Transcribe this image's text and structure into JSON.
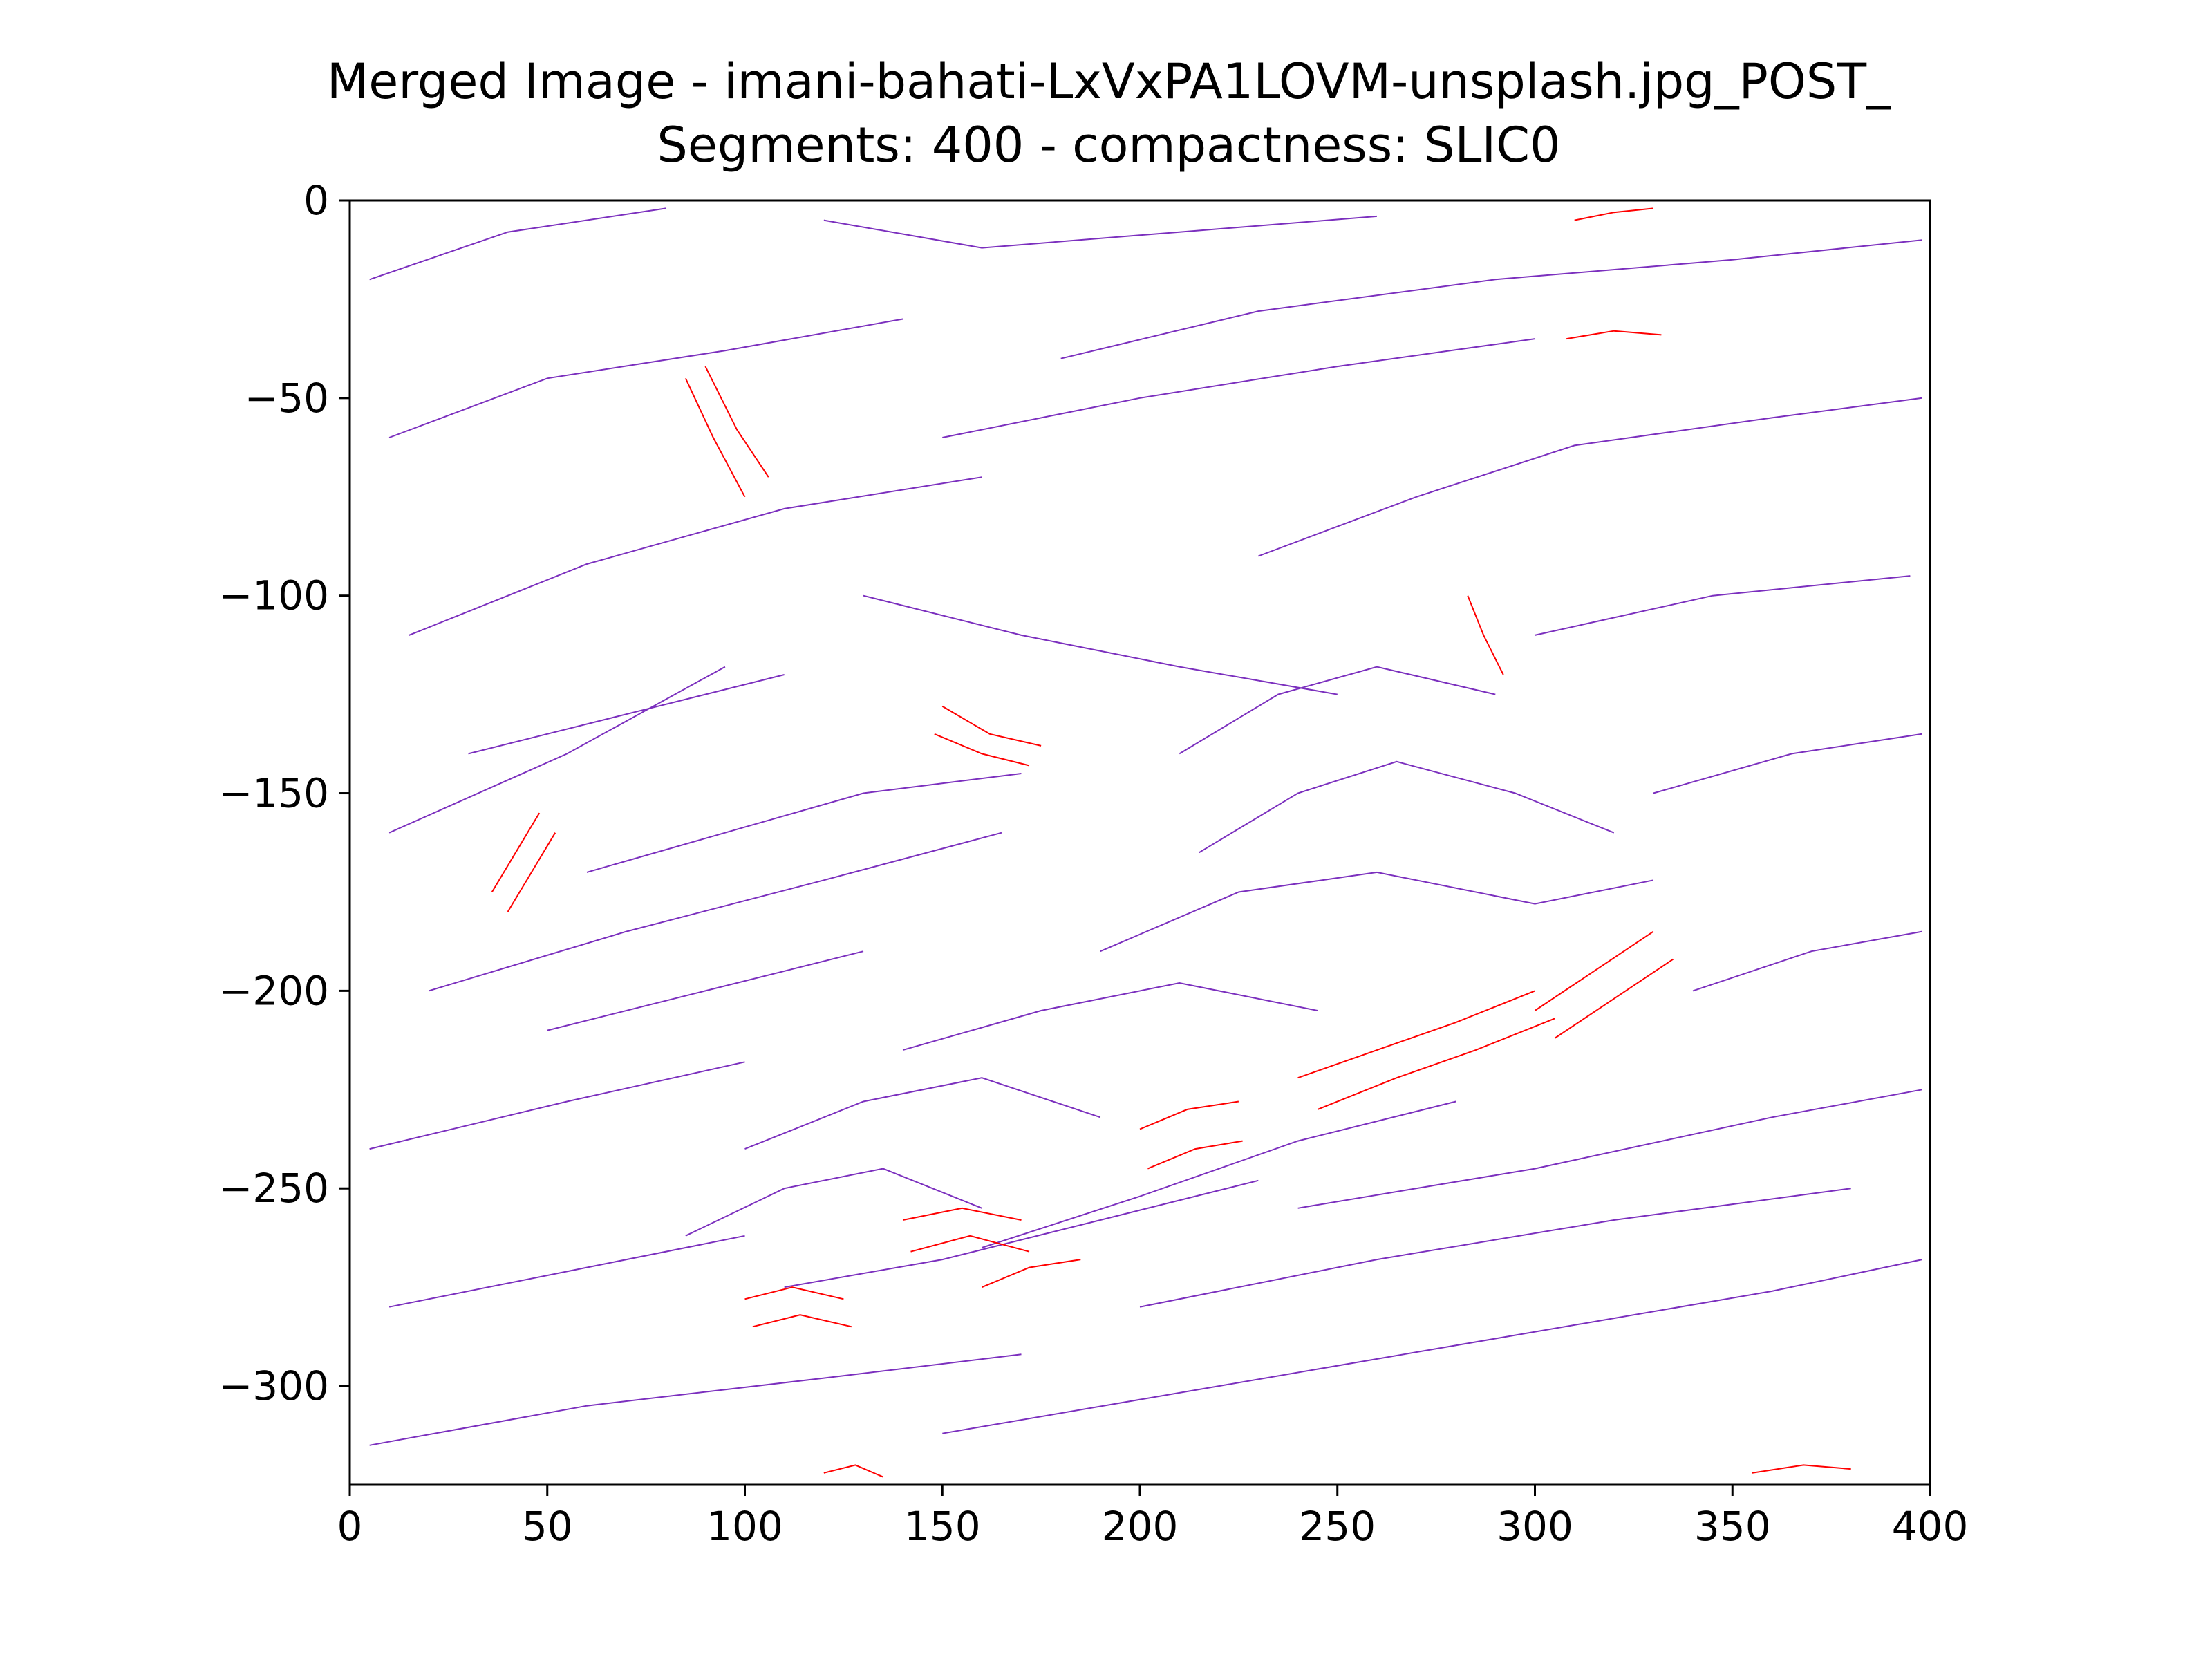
{
  "chart_data": {
    "type": "line",
    "title": "Merged Image - imani-bahati-LxVxPA1LOVM-unsplash.jpg_POST_",
    "subtitle": "Segments: 400 - compactness: SLIC0",
    "xlabel": "",
    "ylabel": "",
    "xlim": [
      0,
      400
    ],
    "ylim": [
      -325,
      0
    ],
    "x_ticks": [
      {
        "value": 0,
        "label": "0"
      },
      {
        "value": 50,
        "label": "50"
      },
      {
        "value": 100,
        "label": "100"
      },
      {
        "value": 150,
        "label": "150"
      },
      {
        "value": 200,
        "label": "200"
      },
      {
        "value": 250,
        "label": "250"
      },
      {
        "value": 300,
        "label": "300"
      },
      {
        "value": 350,
        "label": "350"
      },
      {
        "value": 400,
        "label": "400"
      }
    ],
    "y_ticks": [
      {
        "value": 0,
        "label": "0"
      },
      {
        "value": -50,
        "label": "−50"
      },
      {
        "value": -100,
        "label": "−100"
      },
      {
        "value": -150,
        "label": "−150"
      },
      {
        "value": -200,
        "label": "−200"
      },
      {
        "value": -250,
        "label": "−250"
      },
      {
        "value": -300,
        "label": "−300"
      }
    ],
    "grid": false,
    "legend": "none",
    "series_colors": {
      "default": "#7b2fbe",
      "highlight": "#ff0000"
    },
    "series": [
      {
        "color": "default",
        "points": [
          [
            5,
            -20
          ],
          [
            40,
            -8
          ],
          [
            80,
            -2
          ]
        ]
      },
      {
        "color": "default",
        "points": [
          [
            10,
            -60
          ],
          [
            50,
            -45
          ],
          [
            95,
            -38
          ],
          [
            140,
            -30
          ]
        ]
      },
      {
        "color": "default",
        "points": [
          [
            15,
            -110
          ],
          [
            60,
            -92
          ],
          [
            110,
            -78
          ],
          [
            160,
            -70
          ]
        ]
      },
      {
        "color": "default",
        "points": [
          [
            10,
            -160
          ],
          [
            55,
            -140
          ],
          [
            95,
            -118
          ]
        ]
      },
      {
        "color": "default",
        "points": [
          [
            20,
            -200
          ],
          [
            70,
            -185
          ],
          [
            120,
            -172
          ],
          [
            165,
            -160
          ]
        ]
      },
      {
        "color": "default",
        "points": [
          [
            5,
            -240
          ],
          [
            55,
            -228
          ],
          [
            100,
            -218
          ]
        ]
      },
      {
        "color": "default",
        "points": [
          [
            10,
            -280
          ],
          [
            60,
            -270
          ],
          [
            100,
            -262
          ]
        ]
      },
      {
        "color": "default",
        "points": [
          [
            5,
            -315
          ],
          [
            60,
            -305
          ],
          [
            120,
            -298
          ],
          [
            170,
            -292
          ]
        ]
      },
      {
        "color": "default",
        "points": [
          [
            150,
            -312
          ],
          [
            220,
            -300
          ],
          [
            290,
            -288
          ],
          [
            360,
            -276
          ],
          [
            398,
            -268
          ]
        ]
      },
      {
        "color": "default",
        "points": [
          [
            200,
            -280
          ],
          [
            260,
            -268
          ],
          [
            320,
            -258
          ],
          [
            380,
            -250
          ]
        ]
      },
      {
        "color": "default",
        "points": [
          [
            240,
            -255
          ],
          [
            300,
            -245
          ],
          [
            360,
            -232
          ],
          [
            398,
            -225
          ]
        ]
      },
      {
        "color": "default",
        "points": [
          [
            340,
            -200
          ],
          [
            370,
            -190
          ],
          [
            398,
            -185
          ]
        ]
      },
      {
        "color": "default",
        "points": [
          [
            330,
            -150
          ],
          [
            365,
            -140
          ],
          [
            398,
            -135
          ]
        ]
      },
      {
        "color": "default",
        "points": [
          [
            300,
            -110
          ],
          [
            345,
            -100
          ],
          [
            395,
            -95
          ]
        ]
      },
      {
        "color": "default",
        "points": [
          [
            230,
            -90
          ],
          [
            270,
            -75
          ],
          [
            310,
            -62
          ],
          [
            360,
            -55
          ],
          [
            398,
            -50
          ]
        ]
      },
      {
        "color": "default",
        "points": [
          [
            180,
            -40
          ],
          [
            230,
            -28
          ],
          [
            290,
            -20
          ],
          [
            350,
            -15
          ],
          [
            398,
            -10
          ]
        ]
      },
      {
        "color": "default",
        "points": [
          [
            120,
            -5
          ],
          [
            160,
            -12
          ],
          [
            210,
            -8
          ],
          [
            260,
            -4
          ]
        ]
      },
      {
        "color": "default",
        "points": [
          [
            150,
            -60
          ],
          [
            200,
            -50
          ],
          [
            250,
            -42
          ],
          [
            300,
            -35
          ]
        ]
      },
      {
        "color": "default",
        "points": [
          [
            130,
            -100
          ],
          [
            170,
            -110
          ],
          [
            210,
            -118
          ],
          [
            250,
            -125
          ]
        ]
      },
      {
        "color": "default",
        "points": [
          [
            210,
            -140
          ],
          [
            235,
            -125
          ],
          [
            260,
            -118
          ],
          [
            290,
            -125
          ]
        ]
      },
      {
        "color": "default",
        "points": [
          [
            215,
            -165
          ],
          [
            240,
            -150
          ],
          [
            265,
            -142
          ],
          [
            295,
            -150
          ],
          [
            320,
            -160
          ]
        ]
      },
      {
        "color": "default",
        "points": [
          [
            190,
            -190
          ],
          [
            225,
            -175
          ],
          [
            260,
            -170
          ],
          [
            300,
            -178
          ],
          [
            330,
            -172
          ]
        ]
      },
      {
        "color": "default",
        "points": [
          [
            140,
            -215
          ],
          [
            175,
            -205
          ],
          [
            210,
            -198
          ],
          [
            245,
            -205
          ]
        ]
      },
      {
        "color": "default",
        "points": [
          [
            100,
            -240
          ],
          [
            130,
            -228
          ],
          [
            160,
            -222
          ],
          [
            190,
            -232
          ]
        ]
      },
      {
        "color": "default",
        "points": [
          [
            85,
            -262
          ],
          [
            110,
            -250
          ],
          [
            135,
            -245
          ],
          [
            160,
            -255
          ]
        ]
      },
      {
        "color": "default",
        "points": [
          [
            110,
            -275
          ],
          [
            150,
            -268
          ],
          [
            190,
            -258
          ],
          [
            230,
            -248
          ]
        ]
      },
      {
        "color": "default",
        "points": [
          [
            160,
            -265
          ],
          [
            200,
            -252
          ],
          [
            240,
            -238
          ],
          [
            280,
            -228
          ]
        ]
      },
      {
        "color": "default",
        "points": [
          [
            30,
            -140
          ],
          [
            70,
            -130
          ],
          [
            110,
            -120
          ]
        ]
      },
      {
        "color": "default",
        "points": [
          [
            60,
            -170
          ],
          [
            95,
            -160
          ],
          [
            130,
            -150
          ],
          [
            170,
            -145
          ]
        ]
      },
      {
        "color": "default",
        "points": [
          [
            50,
            -210
          ],
          [
            90,
            -200
          ],
          [
            130,
            -190
          ]
        ]
      },
      {
        "color": "highlight",
        "points": [
          [
            85,
            -45
          ],
          [
            92,
            -60
          ],
          [
            100,
            -75
          ]
        ]
      },
      {
        "color": "highlight",
        "points": [
          [
            90,
            -42
          ],
          [
            98,
            -58
          ],
          [
            106,
            -70
          ]
        ]
      },
      {
        "color": "highlight",
        "points": [
          [
            150,
            -128
          ],
          [
            162,
            -135
          ],
          [
            175,
            -138
          ]
        ]
      },
      {
        "color": "highlight",
        "points": [
          [
            148,
            -135
          ],
          [
            160,
            -140
          ],
          [
            172,
            -143
          ]
        ]
      },
      {
        "color": "highlight",
        "points": [
          [
            36,
            -175
          ],
          [
            42,
            -165
          ],
          [
            48,
            -155
          ]
        ]
      },
      {
        "color": "highlight",
        "points": [
          [
            40,
            -180
          ],
          [
            46,
            -170
          ],
          [
            52,
            -160
          ]
        ]
      },
      {
        "color": "highlight",
        "points": [
          [
            283,
            -100
          ],
          [
            287,
            -110
          ],
          [
            292,
            -120
          ]
        ]
      },
      {
        "color": "highlight",
        "points": [
          [
            310,
            -5
          ],
          [
            320,
            -3
          ],
          [
            330,
            -2
          ]
        ]
      },
      {
        "color": "highlight",
        "points": [
          [
            308,
            -35
          ],
          [
            320,
            -33
          ],
          [
            332,
            -34
          ]
        ]
      },
      {
        "color": "highlight",
        "points": [
          [
            200,
            -235
          ],
          [
            212,
            -230
          ],
          [
            225,
            -228
          ]
        ]
      },
      {
        "color": "highlight",
        "points": [
          [
            202,
            -245
          ],
          [
            214,
            -240
          ],
          [
            226,
            -238
          ]
        ]
      },
      {
        "color": "highlight",
        "points": [
          [
            240,
            -222
          ],
          [
            260,
            -215
          ],
          [
            280,
            -208
          ],
          [
            300,
            -200
          ]
        ]
      },
      {
        "color": "highlight",
        "points": [
          [
            245,
            -230
          ],
          [
            265,
            -222
          ],
          [
            285,
            -215
          ],
          [
            305,
            -207
          ]
        ]
      },
      {
        "color": "highlight",
        "points": [
          [
            300,
            -205
          ],
          [
            315,
            -195
          ],
          [
            330,
            -185
          ]
        ]
      },
      {
        "color": "highlight",
        "points": [
          [
            305,
            -212
          ],
          [
            320,
            -202
          ],
          [
            335,
            -192
          ]
        ]
      },
      {
        "color": "highlight",
        "points": [
          [
            140,
            -258
          ],
          [
            155,
            -255
          ],
          [
            170,
            -258
          ]
        ]
      },
      {
        "color": "highlight",
        "points": [
          [
            142,
            -266
          ],
          [
            157,
            -262
          ],
          [
            172,
            -266
          ]
        ]
      },
      {
        "color": "highlight",
        "points": [
          [
            100,
            -278
          ],
          [
            112,
            -275
          ],
          [
            125,
            -278
          ]
        ]
      },
      {
        "color": "highlight",
        "points": [
          [
            102,
            -285
          ],
          [
            114,
            -282
          ],
          [
            127,
            -285
          ]
        ]
      },
      {
        "color": "highlight",
        "points": [
          [
            160,
            -275
          ],
          [
            172,
            -270
          ],
          [
            185,
            -268
          ]
        ]
      },
      {
        "color": "highlight",
        "points": [
          [
            120,
            -322
          ],
          [
            128,
            -320
          ],
          [
            135,
            -323
          ]
        ]
      },
      {
        "color": "highlight",
        "points": [
          [
            355,
            -322
          ],
          [
            368,
            -320
          ],
          [
            380,
            -321
          ]
        ]
      }
    ]
  }
}
